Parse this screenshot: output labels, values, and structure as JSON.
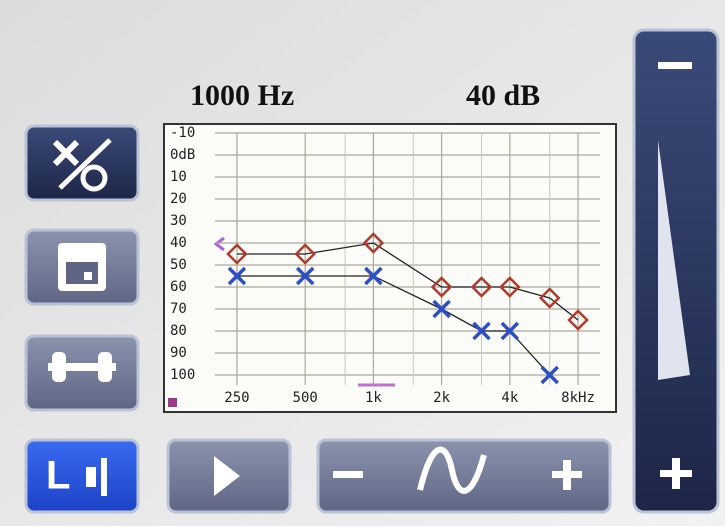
{
  "header": {
    "frequency": "1000 Hz",
    "level": "40 dB"
  },
  "buttons": {
    "ear": "L"
  },
  "chart_data": {
    "type": "line",
    "xscale": "log",
    "x": [
      250,
      500,
      1000,
      2000,
      3000,
      4000,
      6000,
      8000
    ],
    "series": [
      {
        "color": "#b3392b",
        "marker": "diamond",
        "values": [
          45,
          45,
          40,
          60,
          60,
          60,
          65,
          75
        ]
      },
      {
        "color": "#2d4fc4",
        "marker": "x",
        "values": [
          55,
          55,
          55,
          70,
          80,
          80,
          100,
          null
        ]
      }
    ],
    "xlim": [
      200,
      10000
    ],
    "ylim": [
      100,
      -10
    ],
    "xticks": [
      250,
      500,
      {
        "value": 1000,
        "label": "1k"
      },
      {
        "value": 2000,
        "label": "2k"
      },
      {
        "value": 4000,
        "label": "4k"
      },
      {
        "value": 8000,
        "label": "8kHz"
      }
    ],
    "minor_xticks": [
      750,
      1500,
      3000,
      6000
    ],
    "yticks": [
      -10,
      {
        "value": 0,
        "label": "0dB"
      },
      10,
      20,
      30,
      40,
      50,
      60,
      70,
      80,
      90,
      100
    ],
    "grid": true
  }
}
